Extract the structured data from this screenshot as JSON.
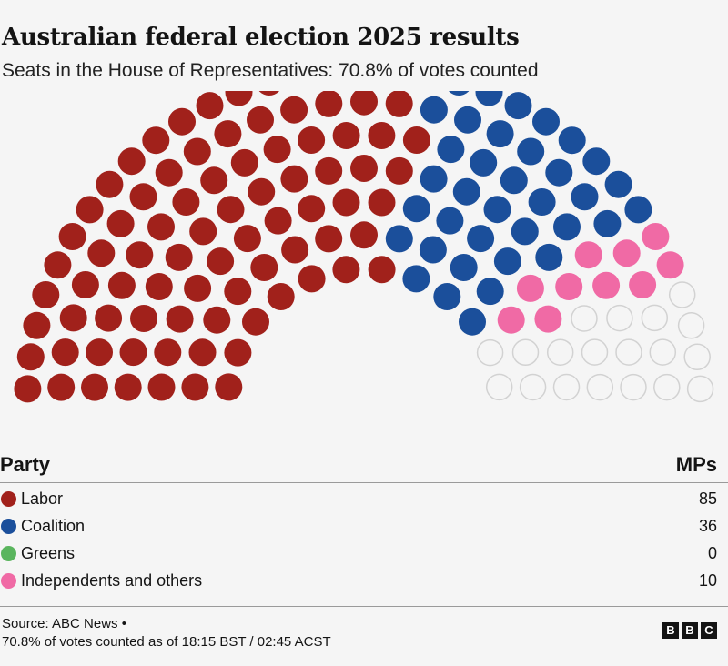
{
  "title": "Australian federal election 2025 results",
  "subtitle": "Seats in the House of Representatives: 70.8% of votes counted",
  "table": {
    "party_header": "Party",
    "mps_header": "MPs"
  },
  "chart_data": {
    "type": "parliament",
    "total_seats": 150,
    "parties": [
      {
        "name": "Labor",
        "seats": 85,
        "color": "#a1211b"
      },
      {
        "name": "Coalition",
        "seats": 36,
        "color": "#1b4f9b"
      },
      {
        "name": "Greens",
        "seats": 0,
        "color": "#5ab55e"
      },
      {
        "name": "Independents and others",
        "seats": 10,
        "color": "#f06aa5"
      }
    ],
    "undeclared": {
      "seats": 19,
      "color": "none",
      "stroke": "#d2d2d2"
    }
  },
  "footer": {
    "source": "Source: ABC News •",
    "note": "70.8% of votes counted as of 18:15 BST / 02:45 ACST",
    "logo": [
      "B",
      "B",
      "C"
    ]
  }
}
